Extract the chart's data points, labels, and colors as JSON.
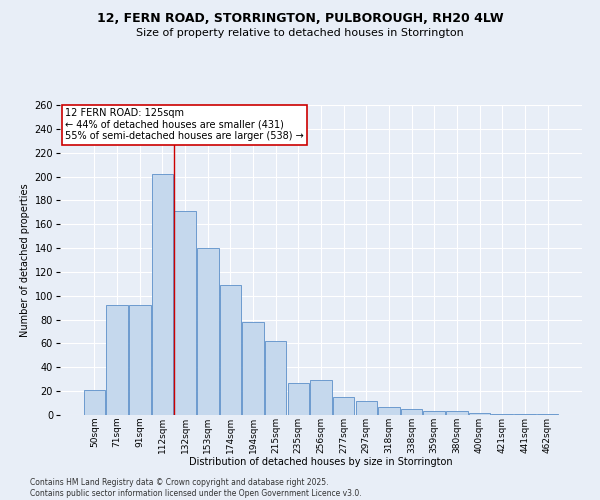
{
  "title_line1": "12, FERN ROAD, STORRINGTON, PULBOROUGH, RH20 4LW",
  "title_line2": "Size of property relative to detached houses in Storrington",
  "xlabel": "Distribution of detached houses by size in Storrington",
  "ylabel": "Number of detached properties",
  "footer_line1": "Contains HM Land Registry data © Crown copyright and database right 2025.",
  "footer_line2": "Contains public sector information licensed under the Open Government Licence v3.0.",
  "categories": [
    "50sqm",
    "71sqm",
    "91sqm",
    "112sqm",
    "132sqm",
    "153sqm",
    "174sqm",
    "194sqm",
    "215sqm",
    "235sqm",
    "256sqm",
    "277sqm",
    "297sqm",
    "318sqm",
    "338sqm",
    "359sqm",
    "380sqm",
    "400sqm",
    "421sqm",
    "441sqm",
    "462sqm"
  ],
  "values": [
    21,
    92,
    92,
    202,
    171,
    140,
    109,
    78,
    62,
    27,
    29,
    15,
    12,
    7,
    5,
    3,
    3,
    2,
    1,
    1,
    1
  ],
  "bar_color": "#c5d8ed",
  "bar_edge_color": "#5b8fc9",
  "background_color": "#e8eef7",
  "grid_color": "#ffffff",
  "red_line_x": 3.5,
  "annotation_text_line1": "12 FERN ROAD: 125sqm",
  "annotation_text_line2": "← 44% of detached houses are smaller (431)",
  "annotation_text_line3": "55% of semi-detached houses are larger (538) →",
  "annotation_box_color": "#ffffff",
  "annotation_box_edge": "#cc0000",
  "ylim": [
    0,
    260
  ],
  "yticks": [
    0,
    20,
    40,
    60,
    80,
    100,
    120,
    140,
    160,
    180,
    200,
    220,
    240,
    260
  ],
  "title_fontsize": 9,
  "subtitle_fontsize": 8,
  "axis_label_fontsize": 7,
  "tick_fontsize": 7,
  "annotation_fontsize": 7,
  "footer_fontsize": 5.5
}
